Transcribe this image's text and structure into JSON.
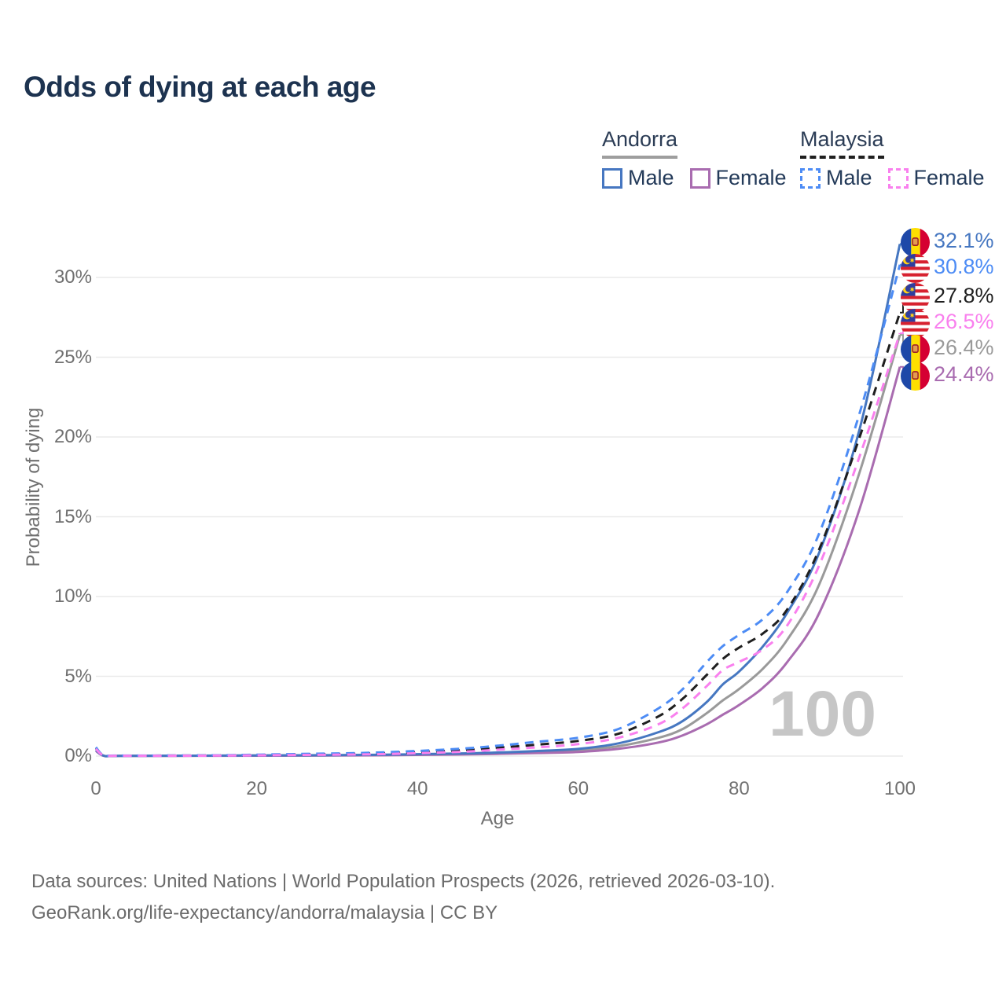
{
  "title": "Odds of dying at each age",
  "legend": {
    "groups": [
      {
        "title": "Andorra",
        "line_style": "solid",
        "underline_color": "#9e9e9e",
        "items": [
          {
            "label": "Male",
            "color": "#4677c1"
          },
          {
            "label": "Female",
            "color": "#a96cb0"
          }
        ]
      },
      {
        "title": "Malaysia",
        "line_style": "dashed",
        "underline_color": "#1f1f1f",
        "items": [
          {
            "label": "Male",
            "color": "#4d8cf5"
          },
          {
            "label": "Female",
            "color": "#f980ee"
          }
        ]
      }
    ]
  },
  "chart_data": {
    "type": "line",
    "title": "Odds of dying at each age",
    "xlabel": "Age",
    "ylabel": "Probability of dying",
    "x_ticks": [
      0,
      20,
      40,
      60,
      80,
      100
    ],
    "y_ticks": [
      "0%",
      "5%",
      "10%",
      "15%",
      "20%",
      "25%",
      "30%"
    ],
    "y_tick_values": [
      0,
      5,
      10,
      15,
      20,
      25,
      30
    ],
    "xlim": [
      0,
      100
    ],
    "ylim": [
      0,
      32.5
    ],
    "grid": "horizontal",
    "watermark": "100",
    "ages": [
      0,
      1,
      3,
      15,
      25,
      35,
      45,
      50,
      55,
      60,
      65,
      70,
      73,
      76,
      78,
      80,
      83,
      86,
      90,
      95,
      100
    ],
    "series": [
      {
        "key": "andorra_male",
        "name": "Andorra Male",
        "country": "Andorra",
        "sex": "Male",
        "style": "solid",
        "color": "#4677c1",
        "flag": "andorra",
        "end_value": 32.1,
        "end_label": "32.1%",
        "values": [
          0.38,
          0.02,
          0.015,
          0.03,
          0.05,
          0.08,
          0.16,
          0.22,
          0.32,
          0.45,
          0.8,
          1.5,
          2.2,
          3.4,
          4.5,
          5.3,
          6.9,
          9.0,
          12.8,
          20.5,
          32.1
        ]
      },
      {
        "key": "malaysia_male",
        "name": "Malaysia Male",
        "country": "Malaysia",
        "sex": "Male",
        "style": "dashed",
        "color": "#4d8cf5",
        "flag": "malaysia",
        "end_value": 30.8,
        "end_label": "30.8%",
        "values": [
          0.55,
          0.04,
          0.03,
          0.05,
          0.13,
          0.22,
          0.45,
          0.65,
          0.9,
          1.15,
          1.7,
          3.0,
          4.2,
          5.9,
          6.9,
          7.6,
          8.6,
          10.3,
          14.0,
          21.5,
          30.8
        ]
      },
      {
        "key": "malaysia_total",
        "name": "Malaysia",
        "country": "Malaysia",
        "sex": "Both",
        "style": "dashed",
        "color": "#1f1f1f",
        "flag": "malaysia",
        "end_value": 27.8,
        "end_label": "27.8%",
        "values": [
          0.5,
          0.035,
          0.025,
          0.04,
          0.1,
          0.17,
          0.35,
          0.52,
          0.72,
          0.95,
          1.4,
          2.5,
          3.6,
          5.1,
          6.1,
          6.8,
          7.7,
          9.2,
          13.0,
          20.0,
          27.8
        ]
      },
      {
        "key": "malaysia_female",
        "name": "Malaysia Female",
        "country": "Malaysia",
        "sex": "Female",
        "style": "dashed",
        "color": "#f980ee",
        "flag": "malaysia",
        "end_value": 26.5,
        "end_label": "26.5%",
        "values": [
          0.45,
          0.03,
          0.02,
          0.03,
          0.07,
          0.12,
          0.26,
          0.4,
          0.55,
          0.75,
          1.15,
          2.0,
          3.0,
          4.4,
          5.4,
          5.9,
          6.7,
          8.2,
          12.0,
          18.8,
          26.5
        ]
      },
      {
        "key": "andorra_total",
        "name": "Andorra",
        "country": "Andorra",
        "sex": "Both",
        "style": "solid",
        "color": "#9a9a9a",
        "flag": "andorra",
        "end_value": 26.4,
        "end_label": "26.4%",
        "values": [
          0.35,
          0.018,
          0.012,
          0.025,
          0.04,
          0.065,
          0.13,
          0.18,
          0.26,
          0.36,
          0.62,
          1.15,
          1.7,
          2.7,
          3.5,
          4.2,
          5.5,
          7.3,
          10.8,
          17.8,
          26.4
        ]
      },
      {
        "key": "andorra_female",
        "name": "Andorra Female",
        "country": "Andorra",
        "sex": "Female",
        "style": "solid",
        "color": "#a96cb0",
        "flag": "andorra",
        "end_value": 24.4,
        "end_label": "24.4%",
        "values": [
          0.32,
          0.015,
          0.01,
          0.02,
          0.03,
          0.05,
          0.1,
          0.14,
          0.19,
          0.26,
          0.46,
          0.85,
          1.3,
          2.0,
          2.6,
          3.2,
          4.3,
          5.9,
          9.0,
          15.5,
          24.4
        ]
      }
    ]
  },
  "footer": {
    "line1": "Data sources: United Nations | World Population Prospects (2026, retrieved 2026-03-10).",
    "line2": "GeoRank.org/life-expectancy/andorra/malaysia | CC BY"
  }
}
